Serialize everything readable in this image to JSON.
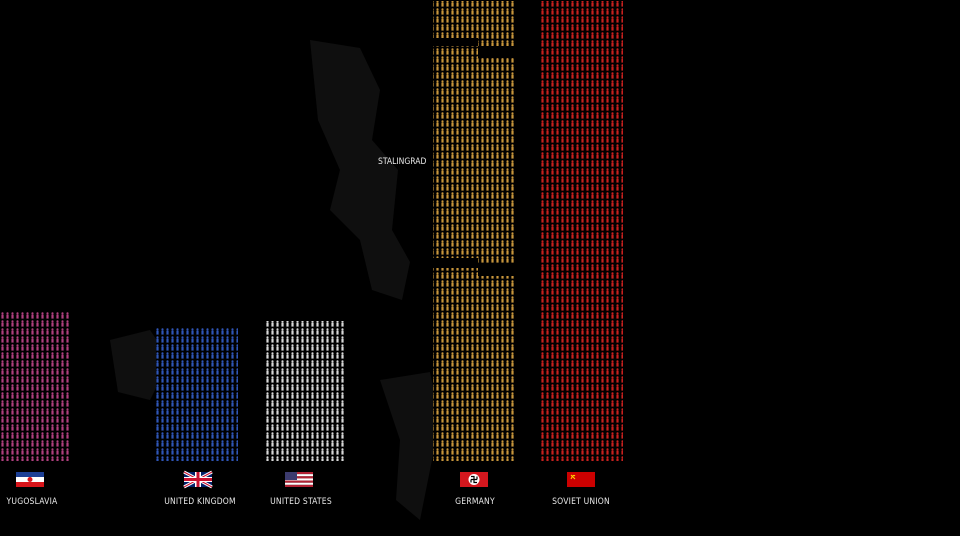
{
  "chart_data": {
    "type": "bar",
    "style": "pictogram",
    "categories": [
      "YUGOSLAVIA",
      "UNITED KINGDOM",
      "UNITED STATES",
      "GERMANY",
      "SOVIET UNION"
    ],
    "series": [
      {
        "values": [
          150,
          134,
          140,
          460,
          460
        ],
        "colors": [
          "#b0407e",
          "#2f56b8",
          "#d8d8d8",
          "#c8963c",
          "#c8201e"
        ]
      }
    ],
    "annotations": [
      {
        "text": "STALINGRAD",
        "category": "GERMANY"
      }
    ],
    "grid": false,
    "legend": "none"
  },
  "flags": [
    {
      "category": "YUGOSLAVIA",
      "icon": "yugoslavia-flag-icon",
      "colors": [
        "#1c3f95",
        "#ffffff",
        "#d7141a"
      ]
    },
    {
      "category": "UNITED KINGDOM",
      "icon": "union-jack-flag-icon",
      "colors": [
        "#012169",
        "#ffffff",
        "#c8102e"
      ]
    },
    {
      "category": "UNITED STATES",
      "icon": "us-flag-icon",
      "colors": [
        "#b22234",
        "#ffffff",
        "#3c3b6e"
      ]
    },
    {
      "category": "GERMANY",
      "icon": "swastika-flag-icon",
      "colors": [
        "#d4171e",
        "#ffffff",
        "#000000"
      ]
    },
    {
      "category": "SOVIET UNION",
      "icon": "soviet-flag-icon",
      "colors": [
        "#cc0000",
        "#ffd700"
      ]
    }
  ]
}
